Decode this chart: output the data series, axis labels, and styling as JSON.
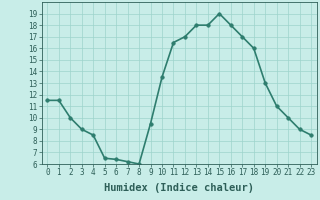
{
  "x": [
    0,
    1,
    2,
    3,
    4,
    5,
    6,
    7,
    8,
    9,
    10,
    11,
    12,
    13,
    14,
    15,
    16,
    17,
    18,
    19,
    20,
    21,
    22,
    23
  ],
  "y": [
    11.5,
    11.5,
    10.0,
    9.0,
    8.5,
    6.5,
    6.4,
    6.2,
    6.0,
    9.5,
    13.5,
    16.5,
    17.0,
    18.0,
    18.0,
    19.0,
    18.0,
    17.0,
    16.0,
    13.0,
    11.0,
    10.0,
    9.0,
    8.5
  ],
  "xlabel": "Humidex (Indice chaleur)",
  "ylim": [
    6,
    20
  ],
  "xlim": [
    -0.5,
    23.5
  ],
  "yticks": [
    6,
    7,
    8,
    9,
    10,
    11,
    12,
    13,
    14,
    15,
    16,
    17,
    18,
    19
  ],
  "xticks": [
    0,
    1,
    2,
    3,
    4,
    5,
    6,
    7,
    8,
    9,
    10,
    11,
    12,
    13,
    14,
    15,
    16,
    17,
    18,
    19,
    20,
    21,
    22,
    23
  ],
  "line_color": "#2e7d6e",
  "marker_color": "#2e7d6e",
  "bg_color": "#c8ede8",
  "grid_color": "#9dd4cc",
  "tick_label_color": "#2e5f58",
  "xlabel_color": "#2e5f58",
  "xlabel_fontsize": 7.5,
  "tick_fontsize": 5.5,
  "line_width": 1.2,
  "marker_size": 2.5
}
